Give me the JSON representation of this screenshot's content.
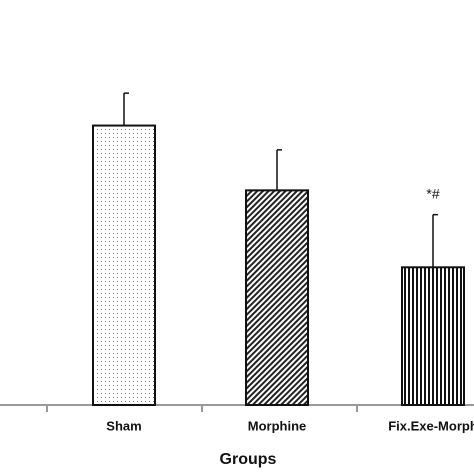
{
  "chart_data": {
    "type": "bar",
    "xlabel": "Groups",
    "categories": [
      "Sham",
      "Morphine",
      "Fix.Exe-Morph"
    ],
    "values": [
      69,
      53,
      34
    ],
    "errors": [
      8,
      10,
      13
    ],
    "annotation": "*#",
    "ylim": [
      0,
      100
    ]
  }
}
